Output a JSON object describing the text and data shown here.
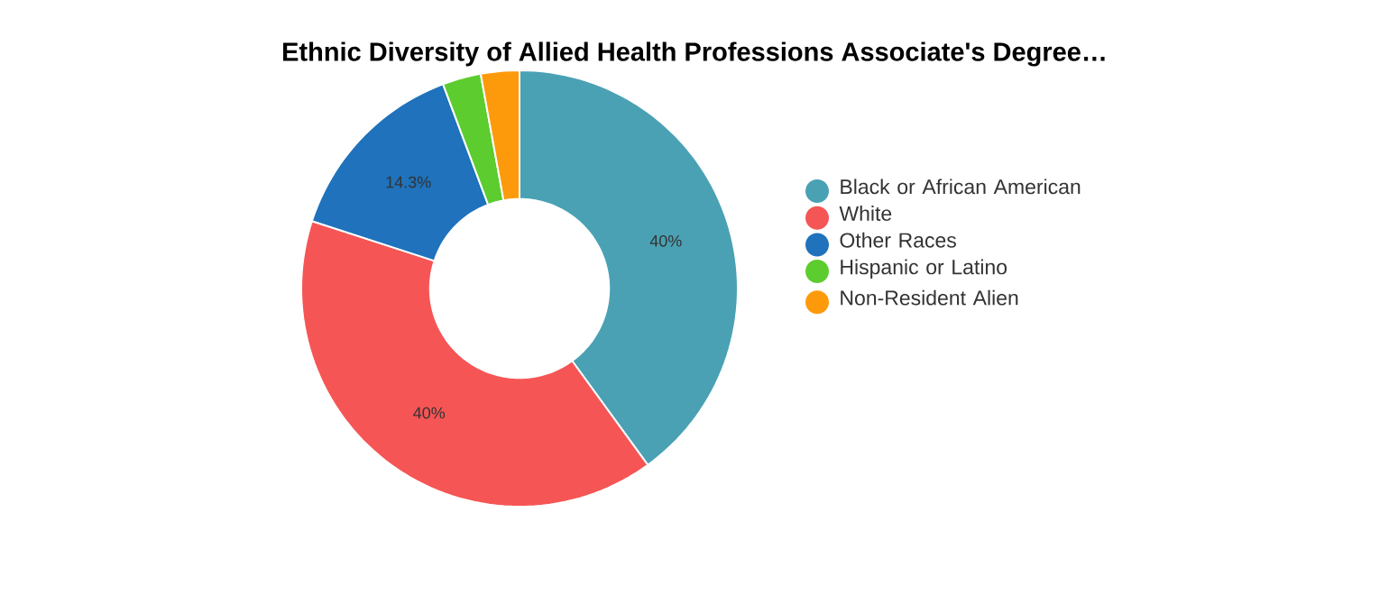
{
  "chart_data": {
    "type": "donut",
    "title": "Ethnic Diversity of Allied Health Professions Associate's Degree…",
    "categories": [
      "Black or African American",
      "White",
      "Other Races",
      "Hispanic or Latino",
      "Non-Resident Alien"
    ],
    "values": [
      40,
      40,
      14.3,
      2.85,
      2.85
    ],
    "colors": [
      "#4aa1b4",
      "#f65555",
      "#1f72bb",
      "#5ccc2e",
      "#fd9a0c"
    ],
    "value_labels": [
      "40%",
      "40%",
      "14.3%",
      null,
      null
    ],
    "legend": "right"
  }
}
